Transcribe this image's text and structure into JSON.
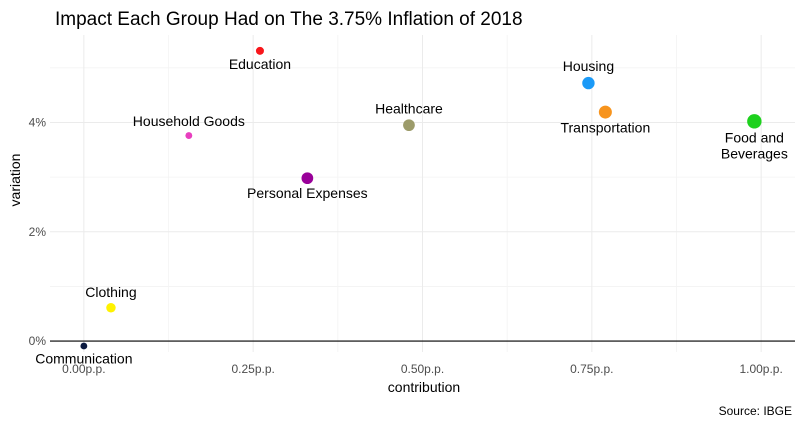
{
  "chart_data": {
    "type": "scatter",
    "title": "Impact Each Group Had on The 3.75% Inflation of 2018",
    "xlabel": "contribution",
    "ylabel": "variation",
    "caption": "Source: IBGE",
    "xlim": [
      -0.05,
      1.05
    ],
    "ylim": [
      -0.2,
      5.6
    ],
    "x_ticks": [
      {
        "value": 0.0,
        "label": "0.00p.p."
      },
      {
        "value": 0.25,
        "label": "0.25p.p."
      },
      {
        "value": 0.5,
        "label": "0.50p.p."
      },
      {
        "value": 0.75,
        "label": "0.75p.p."
      },
      {
        "value": 1.0,
        "label": "1.00p.p."
      }
    ],
    "y_ticks": [
      {
        "value": 0,
        "label": "0%"
      },
      {
        "value": 2,
        "label": "2%"
      },
      {
        "value": 4,
        "label": "4%"
      }
    ],
    "reference_line_y": 0,
    "grid": true,
    "legend": "none",
    "points": [
      {
        "name": "Education",
        "label_lines": [
          "Education"
        ],
        "x": 0.26,
        "y": 5.31,
        "weight": 0.6,
        "color": "#f8161b",
        "label_pos": "below"
      },
      {
        "name": "Household Goods",
        "label_lines": [
          "Household Goods"
        ],
        "x": 0.155,
        "y": 3.76,
        "weight": 0.3,
        "color": "#e83fbf",
        "label_pos": "above"
      },
      {
        "name": "Healthcare",
        "label_lines": [
          "Healthcare"
        ],
        "x": 0.48,
        "y": 3.95,
        "weight": 2.2,
        "color": "#9c9b6a",
        "label_pos": "above"
      },
      {
        "name": "Personal Expenses",
        "label_lines": [
          "Personal Expenses"
        ],
        "x": 0.33,
        "y": 2.98,
        "weight": 2.2,
        "color": "#990099",
        "label_pos": "below"
      },
      {
        "name": "Housing",
        "label_lines": [
          "Housing"
        ],
        "x": 0.745,
        "y": 4.72,
        "weight": 2.6,
        "color": "#1b9af7",
        "label_pos": "above"
      },
      {
        "name": "Transportation",
        "label_lines": [
          "Transportation"
        ],
        "x": 0.77,
        "y": 4.19,
        "weight": 3.0,
        "color": "#f7941d",
        "label_pos": "below"
      },
      {
        "name": "Food and Beverages",
        "label_lines": [
          "Food and",
          "Beverages"
        ],
        "x": 0.99,
        "y": 4.02,
        "weight": 4.0,
        "color": "#1ed11e",
        "label_pos": "below"
      },
      {
        "name": "Clothing",
        "label_lines": [
          "Clothing"
        ],
        "x": 0.04,
        "y": 0.61,
        "weight": 1.1,
        "color": "#fff200",
        "label_pos": "above"
      },
      {
        "name": "Communication",
        "label_lines": [
          "Communication"
        ],
        "x": 0.0,
        "y": -0.09,
        "weight": 0.3,
        "color": "#0b1a40",
        "label_pos": "below"
      }
    ]
  }
}
